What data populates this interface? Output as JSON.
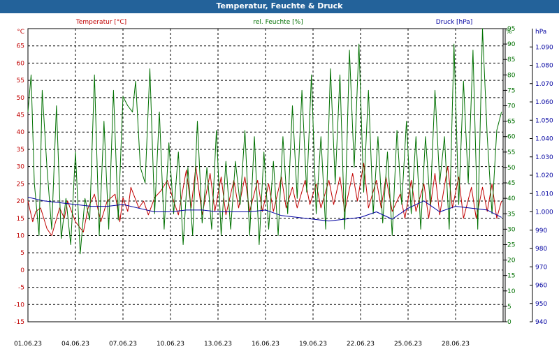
{
  "title": "Temperatur, Feuchte & Druck",
  "colors": {
    "temp": "#c00000",
    "hum": "#007000",
    "press": "#0000a0",
    "titlebar": "#23629a"
  },
  "chart_data": {
    "type": "line",
    "title": "Temperatur, Feuchte & Druck",
    "x_tick_labels": [
      "01.06.23",
      "04.06.23",
      "07.06.23",
      "10.06.23",
      "13.06.23",
      "16.06.23",
      "19.06.23",
      "22.06.23",
      "25.06.23",
      "28.06.23"
    ],
    "x_range_days": [
      0,
      30
    ],
    "grid": true,
    "axes": {
      "temp": {
        "label": "Temperatur [°C]",
        "unit": "°C",
        "ylim": [
          -15,
          70
        ],
        "ticks": [
          -15,
          -10,
          -5,
          0,
          5,
          10,
          15,
          20,
          25,
          30,
          35,
          40,
          45,
          50,
          55,
          60,
          65
        ]
      },
      "hum": {
        "label": "rel. Feuchte [%]",
        "unit": "%",
        "ylim": [
          0,
          95
        ],
        "ticks": [
          0,
          5,
          10,
          15,
          20,
          25,
          30,
          35,
          40,
          45,
          50,
          55,
          60,
          65,
          70,
          75,
          80,
          85,
          90,
          95
        ]
      },
      "press": {
        "label": "Druck [hPa]",
        "unit": "hPa",
        "ylim": [
          940,
          1100
        ],
        "ticks": [
          "940",
          "950",
          "960",
          "970",
          "980",
          "990",
          "1.000",
          "1.010",
          "1.020",
          "1.030",
          "1.040",
          "1.050",
          "1.060",
          "1.070",
          "1.080",
          "1.090"
        ]
      }
    },
    "series": [
      {
        "name": "Temperatur [°C]",
        "axis": "temp",
        "x": [
          0,
          0.3,
          0.5,
          0.8,
          1.2,
          1.5,
          2,
          2.3,
          2.5,
          3,
          3.5,
          3.8,
          4.2,
          4.6,
          5,
          5.5,
          5.8,
          6,
          6.3,
          6.5,
          7,
          7.3,
          7.6,
          8,
          8.4,
          8.8,
          9.2,
          9.5,
          10,
          10.3,
          10.6,
          11,
          11.5,
          11.8,
          12.2,
          12.5,
          13,
          13.3,
          13.7,
          14,
          14.5,
          14.8,
          15.2,
          15.5,
          16,
          16.3,
          16.7,
          17,
          17.5,
          17.8,
          18.2,
          18.5,
          19,
          19.3,
          19.7,
          20,
          20.5,
          20.8,
          21.2,
          21.5,
          22,
          22.3,
          22.6,
          23,
          23.5,
          23.8,
          24.2,
          24.5,
          25,
          25.3,
          25.7,
          26,
          26.5,
          26.8,
          27.2,
          27.5,
          28,
          28.3,
          28.7,
          29,
          29.3,
          29.6,
          29.9
        ],
        "y": [
          20,
          14,
          17,
          18,
          12,
          10,
          18,
          15,
          20,
          14,
          11,
          18,
          22,
          14,
          20,
          22,
          14,
          21,
          17,
          24,
          18,
          20,
          16,
          21,
          23,
          26,
          20,
          16,
          29,
          18,
          30,
          16,
          28,
          17,
          27,
          16,
          26,
          18,
          27,
          17,
          26,
          17,
          25,
          17,
          27,
          18,
          24,
          18,
          26,
          19,
          25,
          18,
          26,
          19,
          27,
          17,
          28,
          20,
          31,
          18,
          26,
          18,
          27,
          17,
          22,
          15,
          26,
          17,
          25,
          15,
          28,
          16,
          30,
          18,
          27,
          15,
          24,
          15,
          24,
          17,
          25,
          15,
          20
        ]
      },
      {
        "name": "rel. Feuchte [%]",
        "axis": "hum",
        "x": [
          0,
          0.2,
          0.4,
          0.7,
          0.9,
          1.2,
          1.5,
          1.8,
          2.1,
          2.4,
          2.7,
          3,
          3.3,
          3.6,
          3.9,
          4.2,
          4.5,
          4.8,
          5.1,
          5.4,
          5.7,
          6,
          6.3,
          6.6,
          6.8,
          7.1,
          7.4,
          7.7,
          8,
          8.3,
          8.6,
          8.9,
          9.2,
          9.5,
          9.8,
          10.1,
          10.4,
          10.7,
          11,
          11.3,
          11.6,
          11.9,
          12.2,
          12.5,
          12.8,
          13.1,
          13.4,
          13.7,
          14,
          14.3,
          14.6,
          14.9,
          15.2,
          15.5,
          15.8,
          16.1,
          16.4,
          16.7,
          17,
          17.3,
          17.6,
          17.9,
          18.2,
          18.5,
          18.8,
          19.1,
          19.4,
          19.7,
          20,
          20.3,
          20.6,
          20.9,
          21.2,
          21.5,
          21.8,
          22.1,
          22.4,
          22.7,
          23,
          23.3,
          23.6,
          23.9,
          24.2,
          24.5,
          24.8,
          25.1,
          25.4,
          25.7,
          26,
          26.3,
          26.6,
          26.9,
          27.2,
          27.5,
          27.8,
          28.1,
          28.4,
          28.7,
          29,
          29.3,
          29.6,
          29.9
        ],
        "y": [
          68,
          80,
          45,
          28,
          75,
          50,
          30,
          70,
          27,
          40,
          25,
          55,
          22,
          40,
          33,
          80,
          28,
          65,
          30,
          75,
          33,
          73,
          70,
          68,
          78,
          50,
          45,
          82,
          35,
          68,
          30,
          58,
          35,
          55,
          25,
          50,
          28,
          65,
          32,
          50,
          30,
          62,
          28,
          52,
          30,
          52,
          38,
          62,
          28,
          60,
          25,
          55,
          30,
          52,
          28,
          60,
          35,
          70,
          40,
          75,
          42,
          80,
          35,
          60,
          30,
          82,
          45,
          80,
          30,
          88,
          50,
          90,
          42,
          75,
          35,
          60,
          32,
          55,
          28,
          62,
          38,
          65,
          35,
          60,
          30,
          60,
          38,
          75,
          45,
          60,
          30,
          90,
          38,
          78,
          45,
          88,
          30,
          95,
          60,
          35,
          62,
          68
        ]
      },
      {
        "name": "Druck [hPa]",
        "axis": "press",
        "x": [
          0,
          1,
          2,
          3,
          4,
          5,
          6,
          7,
          8,
          9,
          10,
          11,
          12,
          13,
          14,
          15,
          16,
          17,
          18,
          19,
          20,
          21,
          22,
          23,
          24,
          25,
          26,
          27,
          28,
          29,
          29.9
        ],
        "y": [
          1008,
          1006,
          1005,
          1004,
          1003,
          1003,
          1004,
          1002,
          1000,
          1000,
          1001,
          1001,
          1000,
          1000,
          1000,
          1001,
          998,
          997,
          996,
          995,
          996,
          997,
          1000,
          996,
          1002,
          1006,
          1000,
          1003,
          1002,
          1001,
          997
        ]
      }
    ]
  }
}
